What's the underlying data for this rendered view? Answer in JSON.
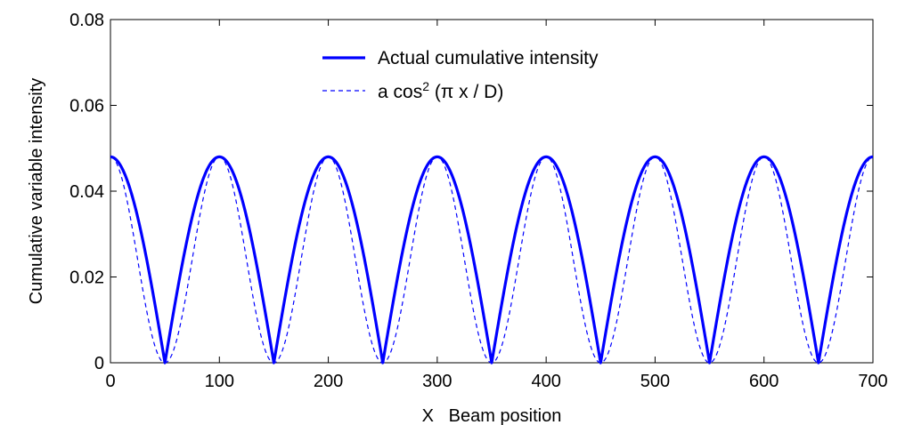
{
  "chart_data": {
    "type": "line",
    "title": "",
    "xlabel": "X   Beam position",
    "ylabel": "Cumulative variable intensity",
    "xlim": [
      0,
      700
    ],
    "ylim": [
      0,
      0.08
    ],
    "x_ticks": [
      0,
      100,
      200,
      300,
      400,
      500,
      600,
      700
    ],
    "x_tick_labels": [
      "0",
      "100",
      "200",
      "300",
      "400",
      "500",
      "600",
      "700"
    ],
    "y_ticks": [
      0,
      0.02,
      0.04,
      0.06,
      0.08
    ],
    "y_tick_labels": [
      "0",
      "0.02",
      "0.04",
      "0.06",
      "0.08"
    ],
    "grid": false,
    "legend_position": "top-center",
    "series": [
      {
        "name": "Actual cumulative intensity",
        "style": "solid",
        "color": "#0000ff",
        "amplitude": 0.048,
        "period": 100,
        "shape": "abs-cos",
        "x": [
          0,
          50,
          100,
          150,
          200,
          250,
          300,
          350,
          400,
          450,
          500,
          550,
          600,
          650,
          700
        ],
        "y": [
          0.048,
          0,
          0.048,
          0,
          0.048,
          0,
          0.048,
          0,
          0.048,
          0,
          0.048,
          0,
          0.048,
          0,
          0.048
        ]
      },
      {
        "name": "a cos",
        "name_superscript": "2",
        "name_suffix": " (π x / D)",
        "style": "dashed",
        "color": "#0000ff",
        "amplitude": 0.048,
        "period": 100,
        "shape": "cos-squared",
        "x": [
          0,
          50,
          100,
          150,
          200,
          250,
          300,
          350,
          400,
          450,
          500,
          550,
          600,
          650,
          700
        ],
        "y": [
          0.048,
          0,
          0.048,
          0,
          0.048,
          0,
          0.048,
          0,
          0.048,
          0,
          0.048,
          0,
          0.048,
          0,
          0.048
        ]
      }
    ]
  }
}
